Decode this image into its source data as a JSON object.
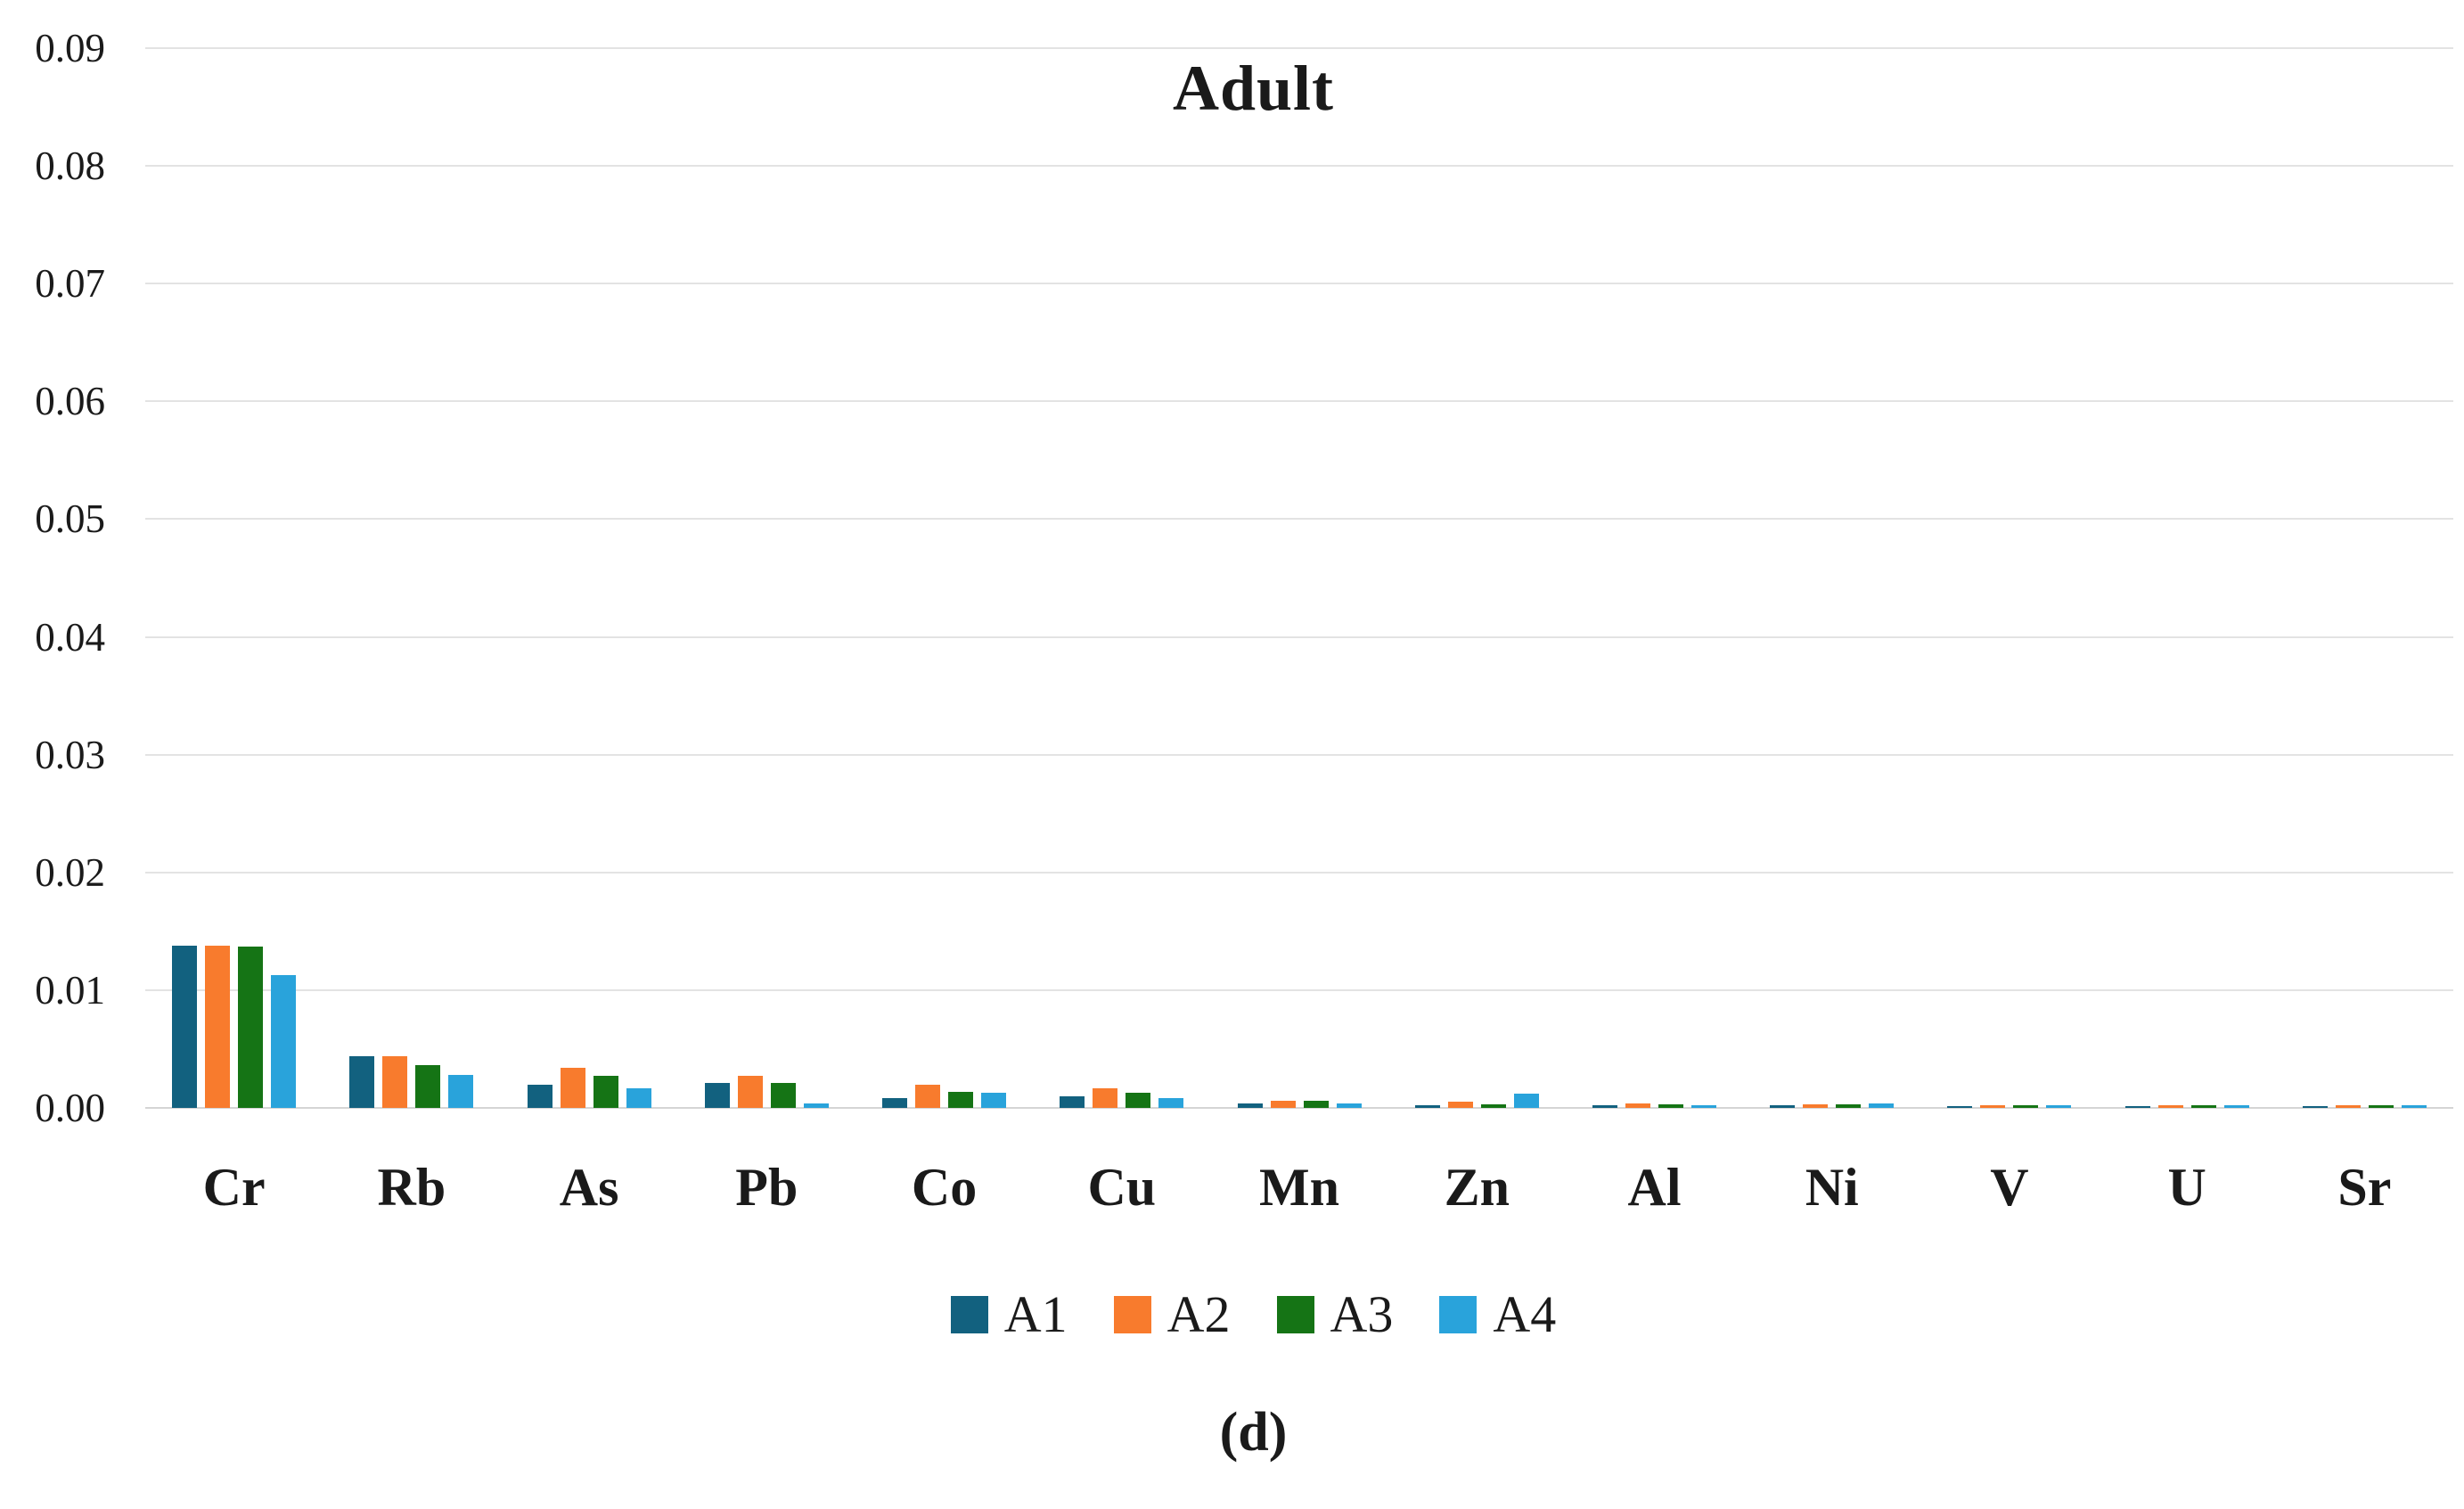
{
  "chart_data": {
    "type": "bar",
    "title": "Adult",
    "caption": "(d)",
    "categories": [
      "Cr",
      "Rb",
      "As",
      "Pb",
      "Co",
      "Cu",
      "Mn",
      "Zn",
      "Al",
      "Ni",
      "V",
      "U",
      "Sr"
    ],
    "series": [
      {
        "name": "A1",
        "color": "#12617F",
        "values": [
          0.0138,
          0.0044,
          0.002,
          0.0021,
          0.0008,
          0.001,
          0.0004,
          0.0002,
          0.0002,
          0.0002,
          0.0001,
          0.0001,
          0.0001
        ]
      },
      {
        "name": "A2",
        "color": "#F87B2D",
        "values": [
          0.0138,
          0.0044,
          0.0034,
          0.0027,
          0.002,
          0.0017,
          0.0006,
          0.0005,
          0.0004,
          0.0003,
          0.0002,
          0.0002,
          0.0002
        ]
      },
      {
        "name": "A3",
        "color": "#157415",
        "values": [
          0.0137,
          0.0036,
          0.0027,
          0.0021,
          0.0014,
          0.0013,
          0.0006,
          0.0003,
          0.0003,
          0.0003,
          0.0002,
          0.0002,
          0.0002
        ]
      },
      {
        "name": "A4",
        "color": "#29A3DB",
        "values": [
          0.0113,
          0.0028,
          0.0017,
          0.0004,
          0.0013,
          0.0008,
          0.0004,
          0.0012,
          0.0002,
          0.0004,
          0.0002,
          0.0002,
          0.0002
        ]
      }
    ],
    "ylim": [
      0,
      0.09
    ],
    "yticks": [
      "0.09",
      "0.08",
      "0.07",
      "0.06",
      "0.05",
      "0.04",
      "0.03",
      "0.02",
      "0.01",
      "0.00"
    ],
    "grid": true,
    "legend_position": "bottom",
    "xlabel": "",
    "ylabel": ""
  },
  "colors": {
    "background": "#FFFFFF",
    "gridline": "#E3E3E3",
    "baseline": "#D5D5D5",
    "text": "#1A1A1A"
  }
}
